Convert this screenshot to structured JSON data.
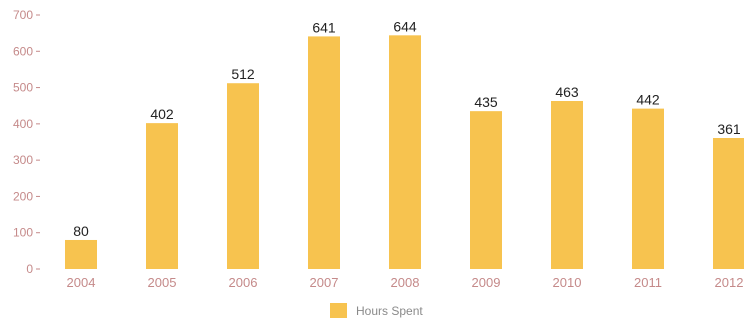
{
  "chart_data": {
    "type": "bar",
    "categories": [
      "2004",
      "2005",
      "2006",
      "2007",
      "2008",
      "2009",
      "2010",
      "2011",
      "2012"
    ],
    "series": [
      {
        "name": "Hours Spent",
        "values": [
          80,
          402,
          512,
          641,
          644,
          435,
          463,
          442,
          361
        ]
      }
    ],
    "data_labels": [
      "80",
      "402",
      "512",
      "641",
      "644",
      "435",
      "463",
      "442",
      "361"
    ],
    "y_ticks": [
      "0",
      "100",
      "200",
      "300",
      "400",
      "500",
      "600",
      "700"
    ],
    "ylim": [
      0,
      700
    ],
    "grid": false,
    "legend_position": "bottom-center",
    "bar_color": "#f7c34f",
    "tick_color": "#c58a8a"
  }
}
